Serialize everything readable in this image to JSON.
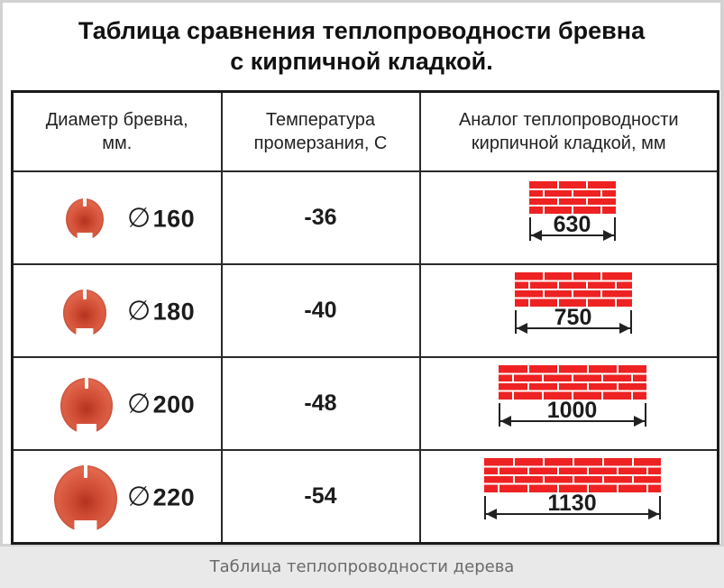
{
  "title": {
    "line1": "Таблица сравнения теплопроводности бревна",
    "line2": "с кирпичной кладкой."
  },
  "headers": {
    "col1_line1": "Диаметр бревна,",
    "col1_line2": "мм.",
    "col2_line1": "Температура",
    "col2_line2": "промерзания, С",
    "col3_line1": "Аналог теплопроводности",
    "col3_line2": "кирпичной кладкой, мм"
  },
  "diameter_symbol": "∅",
  "rows": [
    {
      "diameter": "160",
      "temperature": "-36",
      "brick": "630"
    },
    {
      "diameter": "180",
      "temperature": "-40",
      "brick": "750"
    },
    {
      "diameter": "200",
      "temperature": "-48",
      "brick": "1000"
    },
    {
      "diameter": "220",
      "temperature": "-54",
      "brick": "1130"
    }
  ],
  "caption": "Таблица теплопроводности дерева",
  "colors": {
    "log": "#d9523a",
    "brick": "#ee2222",
    "mortar": "#ffffff"
  }
}
